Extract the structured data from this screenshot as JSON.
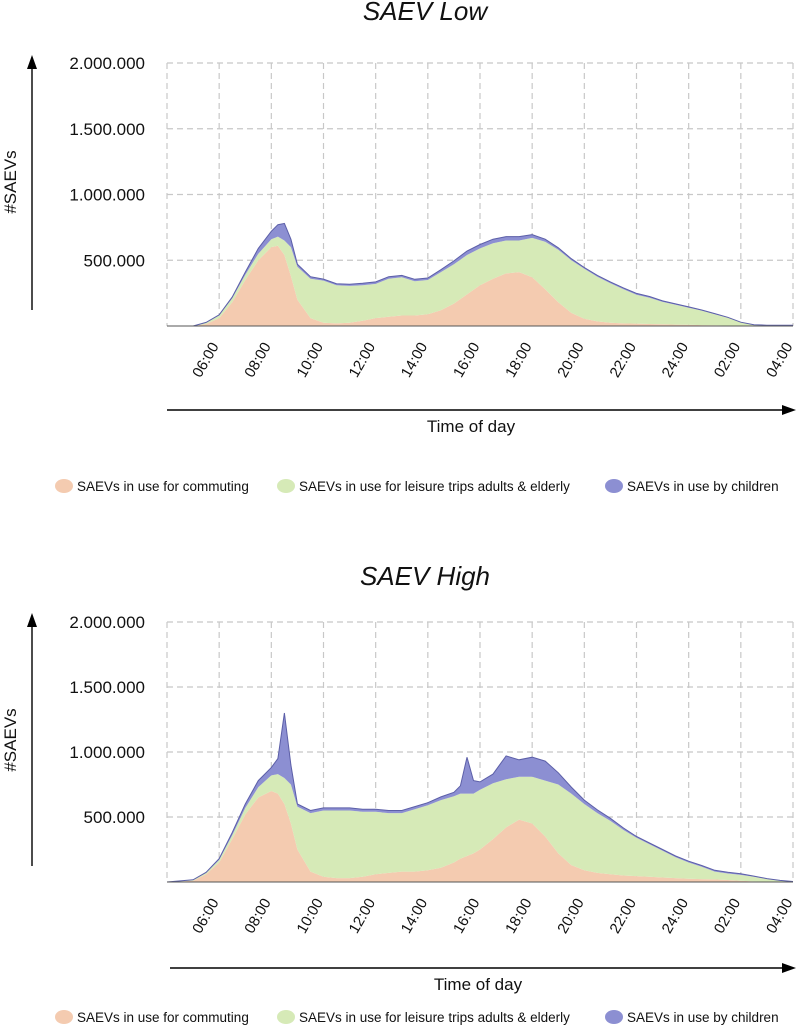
{
  "chart_data": [
    {
      "type": "area",
      "stacked": true,
      "title": "SAEV Low",
      "xlabel": "Time of day",
      "ylabel": "#SAEVs",
      "ylim": [
        0,
        2000000
      ],
      "yticks": [
        500000,
        1000000,
        1500000,
        2000000
      ],
      "ytick_labels": [
        "500.000",
        "1.000.000",
        "1.500.000",
        "2.000.000"
      ],
      "xlim": [
        4,
        28
      ],
      "xticks": [
        6,
        8,
        10,
        12,
        14,
        16,
        18,
        20,
        22,
        24,
        26,
        28
      ],
      "xtick_labels": [
        "06:00",
        "08:00",
        "10:00",
        "12:00",
        "14:00",
        "16:00",
        "18:00",
        "20:00",
        "22:00",
        "24:00",
        "02:00",
        "04:00"
      ],
      "x": [
        5,
        5.5,
        6,
        6.5,
        7,
        7.5,
        8,
        8.25,
        8.5,
        8.75,
        9,
        9.5,
        10,
        10.5,
        11,
        11.5,
        12,
        12.5,
        13,
        13.5,
        14,
        14.5,
        15,
        15.5,
        16,
        16.5,
        17,
        17.5,
        18,
        18.5,
        19,
        19.5,
        20,
        20.5,
        21,
        21.5,
        22,
        22.5,
        23,
        23.5,
        24,
        24.5,
        25,
        25.5,
        26,
        26.5,
        27,
        27.5,
        28
      ],
      "series": [
        {
          "name": "SAEVs in use for commuting",
          "color": "#f4cbb0",
          "values": [
            0,
            15000,
            60000,
            180000,
            350000,
            500000,
            600000,
            610000,
            540000,
            380000,
            200000,
            60000,
            25000,
            20000,
            25000,
            40000,
            60000,
            70000,
            80000,
            80000,
            90000,
            120000,
            170000,
            240000,
            310000,
            360000,
            400000,
            410000,
            370000,
            280000,
            180000,
            100000,
            55000,
            35000,
            25000,
            20000,
            18000,
            15000,
            13000,
            11000,
            9000,
            7000,
            5000,
            3000,
            2000,
            1000,
            0,
            0,
            0
          ]
        },
        {
          "name": "SAEVs in use for leisure trips adults & elderly",
          "color": "#d6eab7",
          "values": [
            0,
            10000,
            20000,
            30000,
            40000,
            50000,
            60000,
            70000,
            110000,
            220000,
            250000,
            300000,
            320000,
            290000,
            280000,
            270000,
            260000,
            290000,
            290000,
            260000,
            260000,
            290000,
            300000,
            300000,
            280000,
            270000,
            250000,
            240000,
            300000,
            360000,
            400000,
            400000,
            380000,
            340000,
            300000,
            260000,
            220000,
            200000,
            170000,
            150000,
            130000,
            110000,
            85000,
            60000,
            25000,
            8000,
            5000,
            5000,
            4000
          ]
        },
        {
          "name": "SAEVs in use by children",
          "color": "#8c8fd2",
          "values": [
            0,
            2000,
            5000,
            10000,
            20000,
            40000,
            60000,
            90000,
            130000,
            60000,
            20000,
            15000,
            12000,
            12000,
            13000,
            15000,
            15000,
            15000,
            15000,
            15000,
            15000,
            18000,
            25000,
            30000,
            30000,
            30000,
            30000,
            30000,
            25000,
            20000,
            15000,
            12000,
            10000,
            10000,
            10000,
            10000,
            10000,
            9000,
            8000,
            7000,
            6000,
            5000,
            4000,
            3000,
            2000,
            1000,
            1000,
            1000,
            1000
          ]
        }
      ]
    },
    {
      "type": "area",
      "stacked": true,
      "title": "SAEV High",
      "xlabel": "Time of day",
      "ylabel": "#SAEVs",
      "ylim": [
        0,
        2000000
      ],
      "yticks": [
        500000,
        1000000,
        1500000,
        2000000
      ],
      "ytick_labels": [
        "500.000",
        "1.000.000",
        "1.500.000",
        "2.000.000"
      ],
      "xlim": [
        4,
        28
      ],
      "xticks": [
        6,
        8,
        10,
        12,
        14,
        16,
        18,
        20,
        22,
        24,
        26,
        28
      ],
      "xtick_labels": [
        "06:00",
        "08:00",
        "10:00",
        "12:00",
        "14:00",
        "16:00",
        "18:00",
        "20:00",
        "22:00",
        "24:00",
        "02:00",
        "04:00"
      ],
      "x": [
        4,
        5,
        5.5,
        6,
        6.5,
        7,
        7.5,
        8,
        8.25,
        8.5,
        8.75,
        9,
        9.5,
        10,
        10.5,
        11,
        11.5,
        12,
        12.5,
        13,
        13.5,
        14,
        14.5,
        15,
        15.25,
        15.5,
        15.75,
        16,
        16.5,
        17,
        17.5,
        18,
        18.5,
        19,
        19.5,
        20,
        20.5,
        21,
        21.5,
        22,
        22.5,
        23,
        23.5,
        24,
        24.5,
        25,
        25.5,
        26,
        26.5,
        27,
        27.5,
        28
      ],
      "series": [
        {
          "name": "SAEVs in use for commuting",
          "color": "#f4cbb0",
          "values": [
            0,
            10000,
            60000,
            150000,
            330000,
            520000,
            650000,
            700000,
            680000,
            600000,
            450000,
            250000,
            80000,
            40000,
            30000,
            30000,
            40000,
            60000,
            70000,
            80000,
            80000,
            90000,
            110000,
            150000,
            180000,
            200000,
            220000,
            250000,
            330000,
            420000,
            480000,
            450000,
            350000,
            220000,
            130000,
            90000,
            70000,
            60000,
            50000,
            45000,
            40000,
            35000,
            30000,
            25000,
            22000,
            20000,
            15000,
            10000,
            5000,
            3000,
            2000,
            1000
          ]
        },
        {
          "name": "SAEVs in use for leisure trips adults & elderly",
          "color": "#d6eab7",
          "values": [
            0,
            5000,
            10000,
            20000,
            30000,
            50000,
            80000,
            120000,
            150000,
            200000,
            300000,
            330000,
            450000,
            510000,
            520000,
            520000,
            500000,
            480000,
            460000,
            450000,
            480000,
            500000,
            520000,
            510000,
            500000,
            480000,
            460000,
            460000,
            430000,
            370000,
            330000,
            360000,
            430000,
            530000,
            550000,
            510000,
            460000,
            410000,
            350000,
            295000,
            250000,
            205000,
            160000,
            125000,
            95000,
            60000,
            50000,
            45000,
            35000,
            20000,
            8000,
            2000
          ]
        },
        {
          "name": "SAEVs in use by children",
          "color": "#8c8fd2",
          "values": [
            0,
            2000,
            5000,
            10000,
            20000,
            30000,
            50000,
            60000,
            120000,
            500000,
            150000,
            20000,
            20000,
            20000,
            20000,
            20000,
            20000,
            20000,
            20000,
            20000,
            20000,
            20000,
            25000,
            30000,
            60000,
            280000,
            100000,
            60000,
            70000,
            180000,
            130000,
            150000,
            150000,
            90000,
            50000,
            30000,
            25000,
            20000,
            15000,
            10000,
            10000,
            10000,
            10000,
            10000,
            10000,
            10000,
            10000,
            8000,
            5000,
            3000,
            2000,
            1000
          ]
        }
      ]
    }
  ]
}
